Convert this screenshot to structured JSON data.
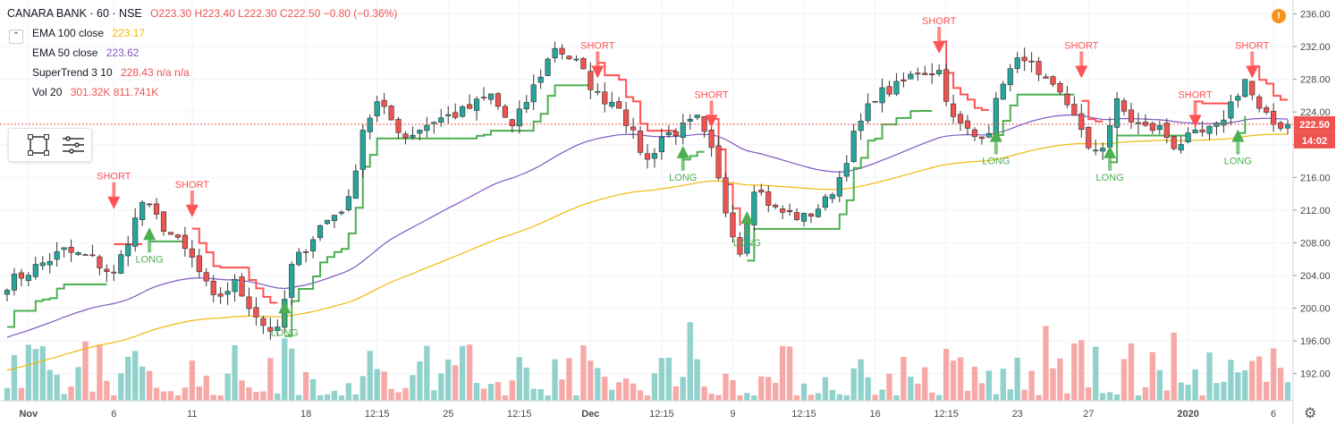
{
  "header": {
    "symbol": "CANARA BANK · 60 · NSE",
    "ohlc": "O223.30 H223.40 L222.30 C222.50 −0.80 (−0.36%)",
    "indicators": [
      {
        "name": "EMA 100 close",
        "values": "223.17",
        "color": "#f0b90b"
      },
      {
        "name": "EMA 50 close",
        "values": "223.62",
        "color": "#7e57c2"
      },
      {
        "name": "SuperTrend 3 10",
        "values": "228.43 n/a n/a",
        "color": "#ef5350"
      },
      {
        "name": "Vol 20",
        "values": "301.32K 811.741K",
        "color": "#ef5350"
      }
    ]
  },
  "icons": {
    "toggle": "chevron-up-icon",
    "rectangle": "rectangle-tool-icon",
    "menu": "menu-icon",
    "alert": "alert-icon",
    "settings": "gear-icon"
  },
  "colors": {
    "up": "#26a69a",
    "down": "#ef5350",
    "ema100": "#f0b90b",
    "ema50": "#7e57c2",
    "st_up": "#4caf50",
    "st_down": "#ff5252"
  },
  "chart_data": {
    "type": "candlestick",
    "title": "CANARA BANK · 60 · NSE",
    "ylim": [
      188,
      236
    ],
    "y_ticks": [
      "236.00",
      "232.00",
      "228.00",
      "224.00",
      "220.00",
      "216.00",
      "212.00",
      "208.00",
      "204.00",
      "200.00",
      "196.00",
      "192.00"
    ],
    "y_tick_values": [
      236,
      232,
      228,
      224,
      220,
      216,
      212,
      208,
      204,
      200,
      196,
      192
    ],
    "x_tick_labels": [
      "Nov",
      "6",
      "11",
      "18",
      "12:15",
      "25",
      "12:15",
      "Dec",
      "12:15",
      "9",
      "12:15",
      "16",
      "12:15",
      "23",
      "27",
      "2020",
      "6"
    ],
    "x_tick_index": [
      3,
      15,
      26,
      42,
      52,
      62,
      72,
      82,
      92,
      102,
      112,
      122,
      132,
      142,
      152,
      166,
      178
    ],
    "last_price": "222.50",
    "countdown": "14:02",
    "signals_short_label": "SHORT",
    "signals_long_label": "LONG",
    "signals": [
      {
        "type": "SHORT",
        "index": 15,
        "price": 213
      },
      {
        "type": "LONG",
        "index": 20,
        "price": 209
      },
      {
        "type": "SHORT",
        "index": 26,
        "price": 212
      },
      {
        "type": "LONG",
        "index": 39,
        "price": 200
      },
      {
        "type": "SHORT",
        "index": 83,
        "price": 229
      },
      {
        "type": "LONG",
        "index": 95,
        "price": 219
      },
      {
        "type": "SHORT",
        "index": 99,
        "price": 223
      },
      {
        "type": "LONG",
        "index": 104,
        "price": 211
      },
      {
        "type": "SHORT",
        "index": 131,
        "price": 232
      },
      {
        "type": "LONG",
        "index": 139,
        "price": 221
      },
      {
        "type": "SHORT",
        "index": 151,
        "price": 229
      },
      {
        "type": "LONG",
        "index": 155,
        "price": 219
      },
      {
        "type": "SHORT",
        "index": 167,
        "price": 223
      },
      {
        "type": "LONG",
        "index": 173,
        "price": 221
      },
      {
        "type": "SHORT",
        "index": 175,
        "price": 229
      }
    ],
    "anchors": [
      [
        0,
        203
      ],
      [
        4,
        205
      ],
      [
        8,
        207
      ],
      [
        12,
        206
      ],
      [
        15,
        204
      ],
      [
        19,
        213
      ],
      [
        22,
        210
      ],
      [
        26,
        206
      ],
      [
        29,
        201
      ],
      [
        32,
        203
      ],
      [
        36,
        198
      ],
      [
        38,
        197
      ],
      [
        40,
        205
      ],
      [
        44,
        210
      ],
      [
        48,
        213
      ],
      [
        50,
        222
      ],
      [
        52,
        225
      ],
      [
        56,
        221
      ],
      [
        60,
        223
      ],
      [
        64,
        224
      ],
      [
        68,
        226
      ],
      [
        71,
        222
      ],
      [
        74,
        227
      ],
      [
        77,
        232
      ],
      [
        80,
        230
      ],
      [
        83,
        226
      ],
      [
        86,
        225
      ],
      [
        88,
        221
      ],
      [
        90,
        218
      ],
      [
        92,
        221
      ],
      [
        95,
        222
      ],
      [
        97,
        223
      ],
      [
        99,
        219
      ],
      [
        101,
        212
      ],
      [
        103,
        207
      ],
      [
        105,
        215
      ],
      [
        108,
        212
      ],
      [
        112,
        211
      ],
      [
        115,
        213
      ],
      [
        117,
        216
      ],
      [
        119,
        221
      ],
      [
        122,
        226
      ],
      [
        125,
        227
      ],
      [
        128,
        229
      ],
      [
        131,
        229
      ],
      [
        133,
        223
      ],
      [
        136,
        221
      ],
      [
        138,
        222
      ],
      [
        140,
        228
      ],
      [
        143,
        231
      ],
      [
        145,
        228
      ],
      [
        148,
        226
      ],
      [
        150,
        224
      ],
      [
        152,
        219
      ],
      [
        154,
        220
      ],
      [
        156,
        225
      ],
      [
        158,
        223
      ],
      [
        160,
        222
      ],
      [
        162,
        222
      ],
      [
        164,
        220
      ],
      [
        167,
        221
      ],
      [
        170,
        222
      ],
      [
        172,
        225
      ],
      [
        174,
        228
      ],
      [
        176,
        224
      ],
      [
        178,
        222.5
      ]
    ],
    "volume_scale_note": "volume shown as bars at chart bottom"
  }
}
